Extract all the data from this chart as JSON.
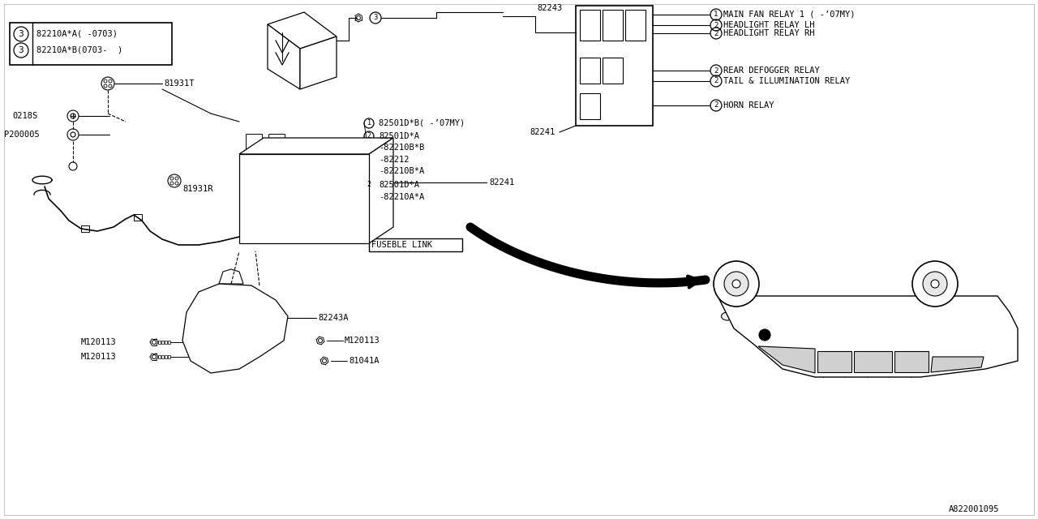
{
  "bg_color": "#ffffff",
  "line_color": "#000000",
  "watermark": "A822001095",
  "relay_labels": [
    "MAIN FAN RELAY 1 ( -’07MY)",
    "HEADLIGHT RELAY LH",
    "HEADLIGHT RELAY RH",
    "REAR DEFOGGER RELAY",
    "TAIL & ILLUMINATION RELAY",
    "HORN RELAY"
  ],
  "relay_nums": [
    "1",
    "2",
    "2",
    "2",
    "2",
    "2"
  ],
  "label_line1": "82210A*A( -0703)",
  "label_line2": "82210A*B(0703-  )",
  "label_num": "3",
  "parts_upper": [
    {
      "num": "1",
      "text": "82501D*B( -’07MY)"
    },
    {
      "num": "2",
      "text": "82501D*A"
    },
    {
      "num": "",
      "text": "82210B*B"
    },
    {
      "num": "",
      "text": "82212"
    },
    {
      "num": "",
      "text": "82210B*A"
    },
    {
      "num": "2",
      "text": "82501D*A"
    },
    {
      "num": "",
      "text": "82210A*A"
    }
  ],
  "fuseble_link": "FUSEBLE LINK",
  "part_82243": "82243",
  "part_82241": "82241",
  "part_81931T": "81931T",
  "part_81931R": "81931R",
  "part_0218S": "0218S",
  "part_P200005": "P200005",
  "part_82243A": "82243A",
  "part_M120113": "M120113",
  "part_81041A": "81041A"
}
